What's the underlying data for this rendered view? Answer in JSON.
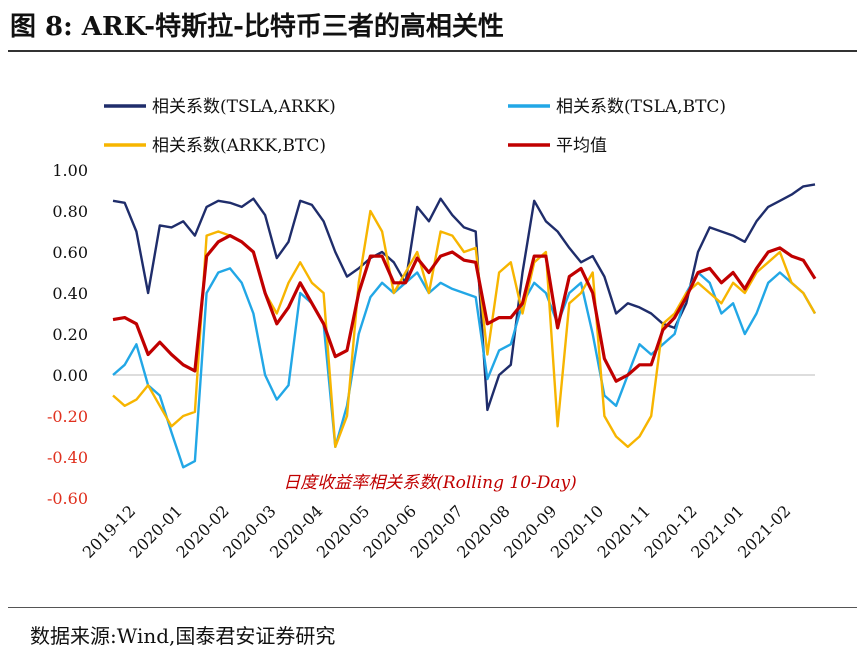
{
  "title": "图 8:  ARK-特斯拉-比特币三者的高相关性",
  "source": "数据来源:Wind,国泰君安证券研究",
  "colors": {
    "TSLA_ARKK": "#1f2d6b",
    "TSLA_BTC": "#22a7e6",
    "ARKK_BTC": "#f7b500",
    "AVG": "#c00000",
    "neg_label": "#e0301e"
  },
  "chart_data": {
    "type": "line",
    "annotation": "日度收益率相关系数(Rolling 10-Day)",
    "ylim": [
      -0.6,
      1.0
    ],
    "yticks": [
      "1.00",
      "0.80",
      "0.60",
      "0.40",
      "0.20",
      "0.00",
      "-0.20",
      "-0.40",
      "-0.60"
    ],
    "xticks": [
      "2019-12",
      "2020-01",
      "2020-02",
      "2020-03",
      "2020-04",
      "2020-05",
      "2020-06",
      "2020-07",
      "2020-08",
      "2020-09",
      "2020-10",
      "2020-11",
      "2020-12",
      "2021-01",
      "2021-02"
    ],
    "legend": [
      "相关系数(TSLA,ARKK)",
      "相关系数(TSLA,BTC)",
      "相关系数(ARKK,BTC)",
      "平均值"
    ],
    "x": [
      0,
      0.25,
      0.5,
      0.75,
      1,
      1.25,
      1.5,
      1.75,
      2,
      2.25,
      2.5,
      2.75,
      3,
      3.25,
      3.5,
      3.75,
      4,
      4.25,
      4.5,
      4.75,
      5,
      5.25,
      5.5,
      5.75,
      6,
      6.25,
      6.5,
      6.75,
      7,
      7.25,
      7.5,
      7.75,
      8,
      8.25,
      8.5,
      8.75,
      9,
      9.25,
      9.5,
      9.75,
      10,
      10.25,
      10.5,
      10.75,
      11,
      11.25,
      11.5,
      11.75,
      12,
      12.25,
      12.5,
      12.75,
      13,
      13.25,
      13.5,
      13.75,
      14,
      14.25,
      14.5,
      14.75,
      15
    ],
    "series": [
      {
        "name": "相关系数(TSLA,ARKK)",
        "values": [
          0.85,
          0.84,
          0.7,
          0.4,
          0.73,
          0.72,
          0.75,
          0.68,
          0.82,
          0.85,
          0.84,
          0.82,
          0.86,
          0.78,
          0.57,
          0.65,
          0.85,
          0.83,
          0.75,
          0.6,
          0.48,
          0.52,
          0.57,
          0.6,
          0.55,
          0.45,
          0.82,
          0.75,
          0.86,
          0.78,
          0.72,
          0.7,
          -0.17,
          0.0,
          0.05,
          0.5,
          0.85,
          0.75,
          0.7,
          0.62,
          0.55,
          0.58,
          0.48,
          0.3,
          0.35,
          0.33,
          0.3,
          0.25,
          0.23,
          0.35,
          0.6,
          0.72,
          0.7,
          0.68,
          0.65,
          0.75,
          0.82,
          0.85,
          0.88,
          0.92,
          0.93
        ]
      },
      {
        "name": "相关系数(TSLA,BTC)",
        "values": [
          0.0,
          0.05,
          0.15,
          -0.05,
          -0.1,
          -0.28,
          -0.45,
          -0.42,
          0.4,
          0.5,
          0.52,
          0.45,
          0.3,
          0.0,
          -0.12,
          -0.05,
          0.4,
          0.35,
          0.25,
          -0.35,
          -0.15,
          0.2,
          0.38,
          0.45,
          0.4,
          0.45,
          0.5,
          0.4,
          0.45,
          0.42,
          0.4,
          0.38,
          -0.02,
          0.12,
          0.15,
          0.35,
          0.45,
          0.4,
          0.25,
          0.4,
          0.45,
          0.2,
          -0.1,
          -0.15,
          0.0,
          0.15,
          0.1,
          0.15,
          0.2,
          0.4,
          0.5,
          0.45,
          0.3,
          0.35,
          0.2,
          0.3,
          0.45,
          0.5,
          0.45,
          0.4,
          0.3
        ]
      },
      {
        "name": "相关系数(ARKK,BTC)",
        "values": [
          -0.1,
          -0.15,
          -0.12,
          -0.05,
          -0.15,
          -0.25,
          -0.2,
          -0.18,
          0.68,
          0.7,
          0.68,
          0.65,
          0.6,
          0.4,
          0.3,
          0.45,
          0.55,
          0.45,
          0.4,
          -0.35,
          -0.2,
          0.45,
          0.8,
          0.7,
          0.4,
          0.5,
          0.6,
          0.4,
          0.7,
          0.68,
          0.6,
          0.62,
          0.1,
          0.5,
          0.55,
          0.3,
          0.55,
          0.6,
          -0.25,
          0.35,
          0.4,
          0.5,
          -0.2,
          -0.3,
          -0.35,
          -0.3,
          -0.2,
          0.25,
          0.3,
          0.4,
          0.45,
          0.4,
          0.35,
          0.45,
          0.4,
          0.5,
          0.55,
          0.6,
          0.45,
          0.4,
          0.3
        ]
      },
      {
        "name": "平均值",
        "values": [
          0.27,
          0.28,
          0.25,
          0.1,
          0.16,
          0.1,
          0.05,
          0.02,
          0.58,
          0.65,
          0.68,
          0.65,
          0.6,
          0.4,
          0.25,
          0.33,
          0.45,
          0.35,
          0.25,
          0.09,
          0.12,
          0.4,
          0.58,
          0.58,
          0.45,
          0.45,
          0.57,
          0.5,
          0.58,
          0.6,
          0.56,
          0.55,
          0.25,
          0.28,
          0.28,
          0.35,
          0.58,
          0.58,
          0.23,
          0.48,
          0.52,
          0.4,
          0.08,
          -0.03,
          0.0,
          0.05,
          0.05,
          0.22,
          0.28,
          0.38,
          0.5,
          0.52,
          0.45,
          0.5,
          0.42,
          0.52,
          0.6,
          0.62,
          0.58,
          0.56,
          0.47
        ]
      }
    ]
  }
}
